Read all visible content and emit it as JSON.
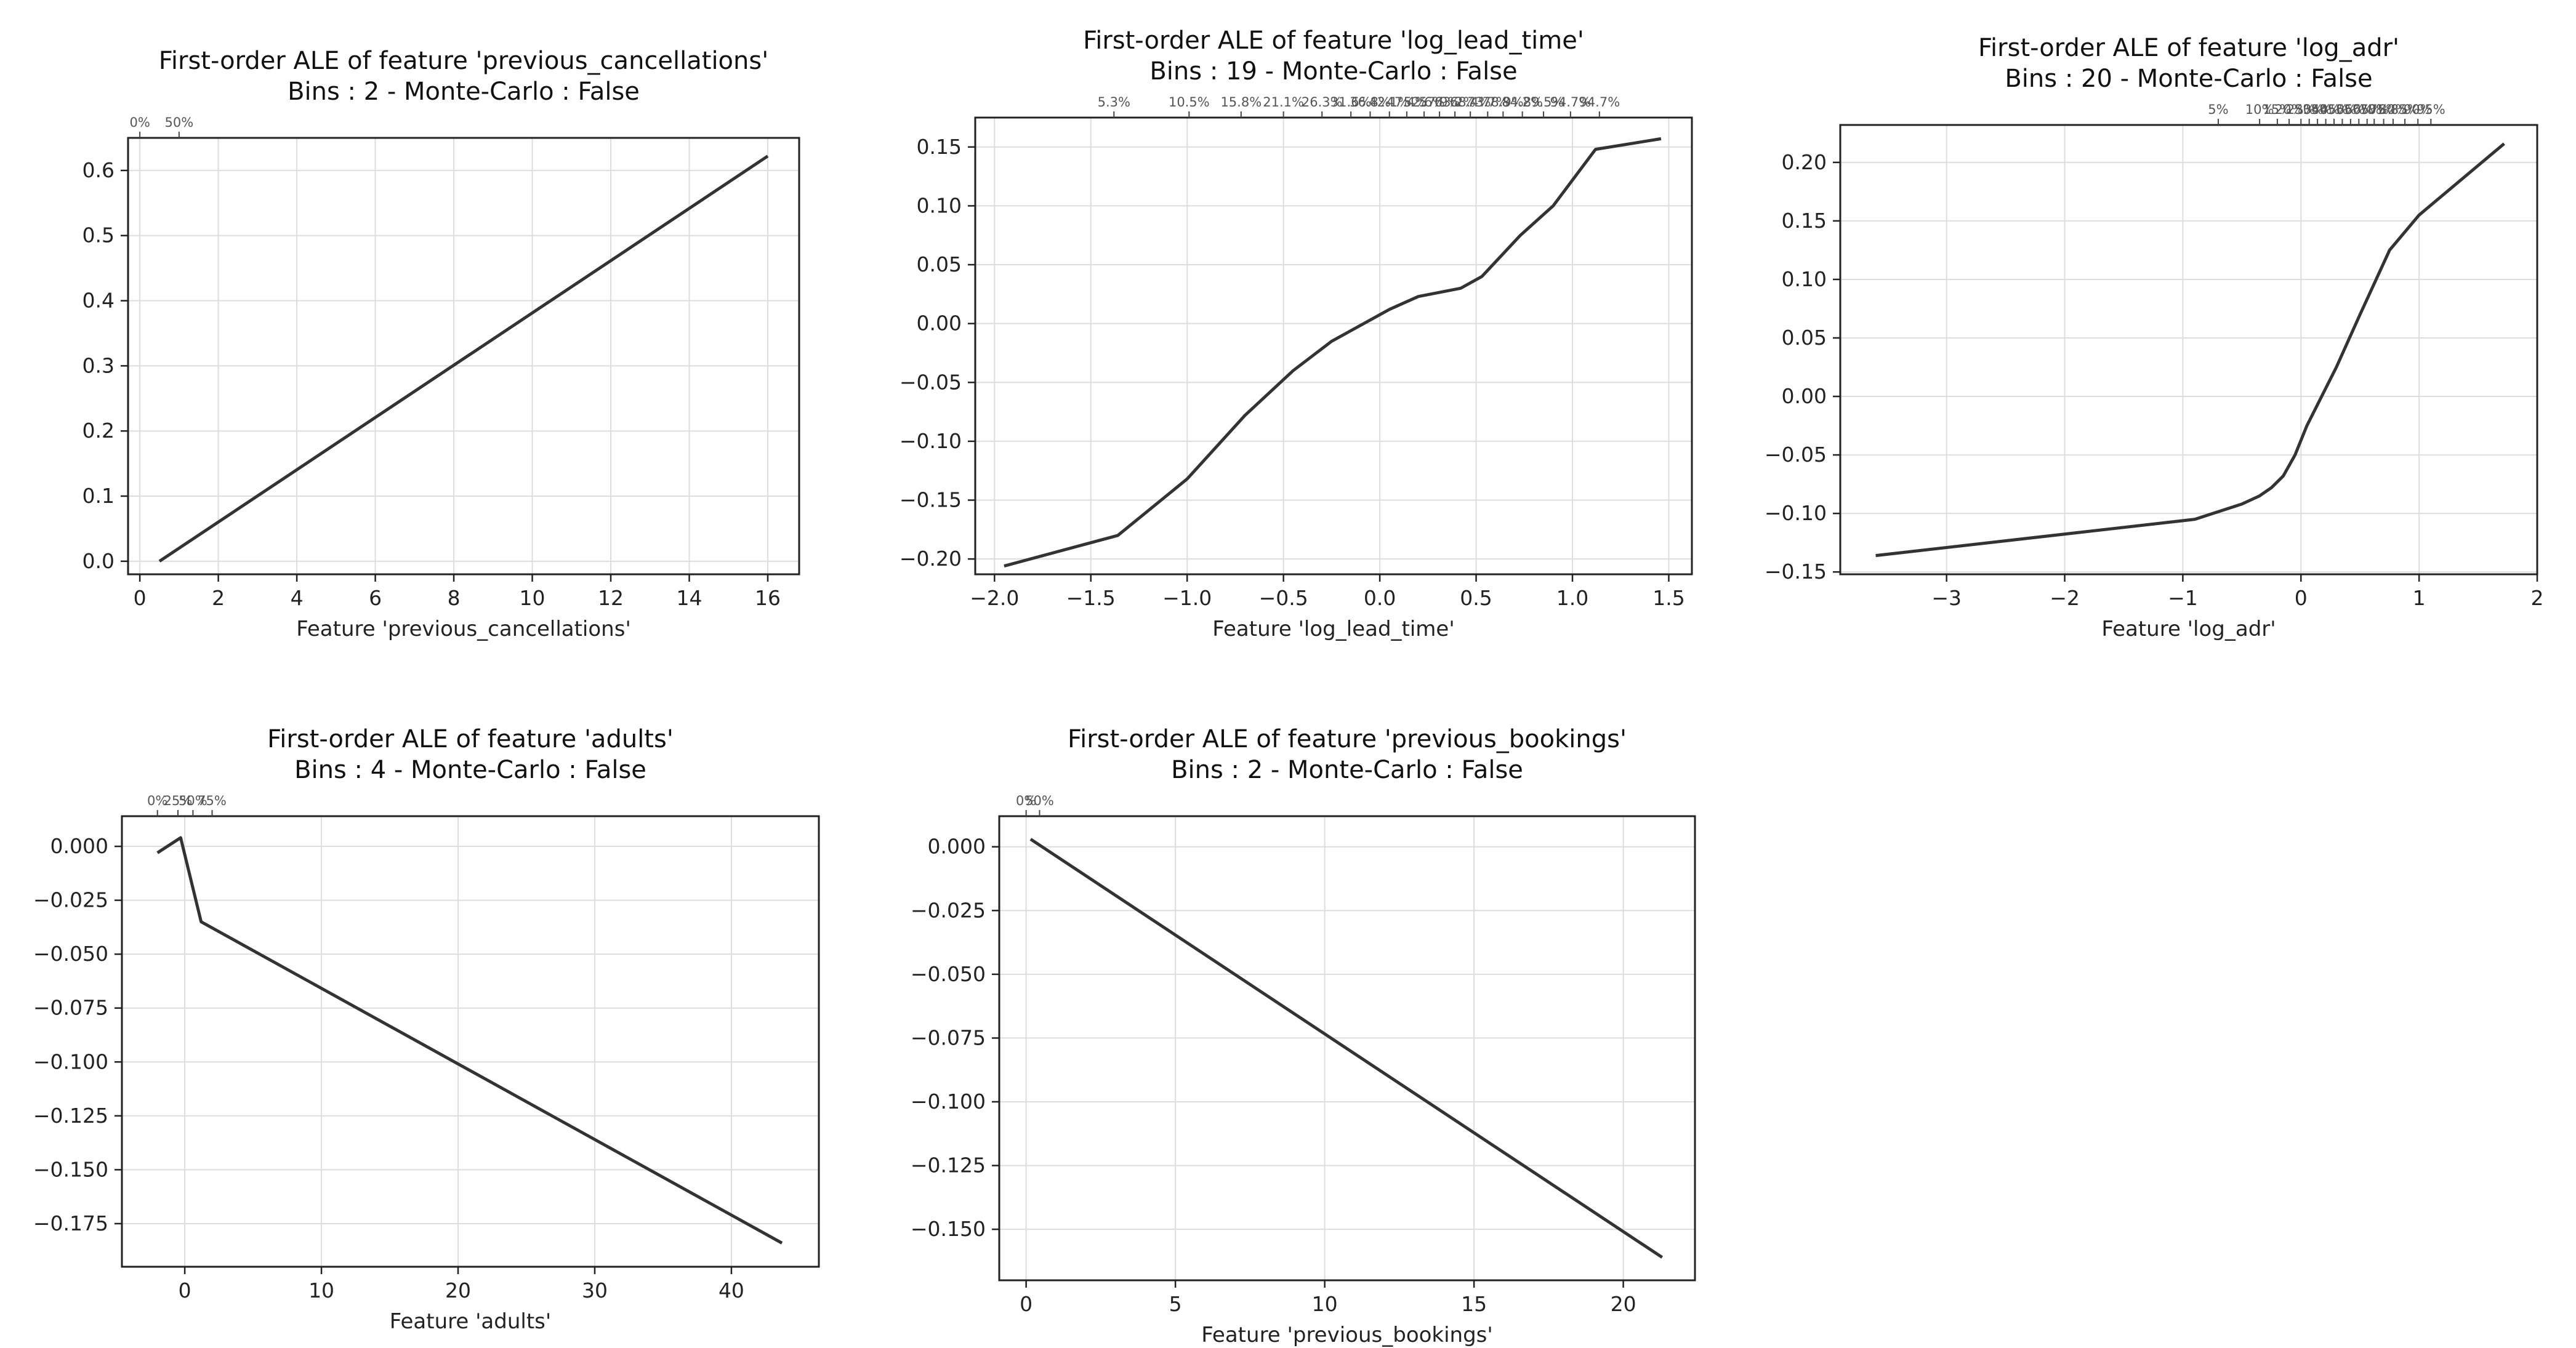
{
  "chart_data": [
    {
      "type": "line",
      "title": "First-order ALE of feature 'previous_cancellations'",
      "subtitle": "Bins : 2 - Monte-Carlo : False",
      "xlabel": "Feature 'previous_cancellations'",
      "ylabel": "",
      "xlim": [
        -0.3,
        16.8
      ],
      "ylim": [
        -0.02,
        0.65
      ],
      "xticks": [
        0,
        2,
        4,
        6,
        8,
        10,
        12,
        14,
        16
      ],
      "yticks": [
        0.0,
        0.1,
        0.2,
        0.3,
        0.4,
        0.5,
        0.6
      ],
      "x_tick_labels": [
        "0",
        "2",
        "4",
        "6",
        "8",
        "10",
        "12",
        "14",
        "16"
      ],
      "y_tick_labels": [
        "0.0",
        "0.1",
        "0.2",
        "0.3",
        "0.4",
        "0.5",
        "0.6"
      ],
      "quantiles": [
        {
          "x": 0.0,
          "label": "0%"
        },
        {
          "x": 1.0,
          "label": "50%"
        }
      ],
      "grid": true,
      "x": [
        0.5,
        16.0
      ],
      "y": [
        0.0,
        0.622
      ]
    },
    {
      "type": "line",
      "title": "First-order ALE of feature 'log_lead_time'",
      "subtitle": "Bins : 19 - Monte-Carlo : False",
      "xlabel": "Feature 'log_lead_time'",
      "ylabel": "",
      "xlim": [
        -2.1,
        1.62
      ],
      "ylim": [
        -0.213,
        0.175
      ],
      "xticks": [
        -2.0,
        -1.5,
        -1.0,
        -0.5,
        0.0,
        0.5,
        1.0,
        1.5
      ],
      "yticks": [
        -0.2,
        -0.15,
        -0.1,
        -0.05,
        0.0,
        0.05,
        0.1,
        0.15
      ],
      "x_tick_labels": [
        "−2.0",
        "−1.5",
        "−1.0",
        "−0.5",
        "0.0",
        "0.5",
        "1.0",
        "1.5"
      ],
      "y_tick_labels": [
        "−0.20",
        "−0.15",
        "−0.10",
        "−0.05",
        "0.00",
        "0.05",
        "0.10",
        "0.15"
      ],
      "quantiles": [
        {
          "x": -1.38,
          "label": "5.3%"
        },
        {
          "x": -0.99,
          "label": "10.5%"
        },
        {
          "x": -0.72,
          "label": "15.8%"
        },
        {
          "x": -0.5,
          "label": "21.1%"
        },
        {
          "x": -0.3,
          "label": "26.3%"
        },
        {
          "x": -0.15,
          "label": "31.6%"
        },
        {
          "x": -0.05,
          "label": "36.8%"
        },
        {
          "x": 0.05,
          "label": "42.1%"
        },
        {
          "x": 0.14,
          "label": "47.4%"
        },
        {
          "x": 0.23,
          "label": "52.6%"
        },
        {
          "x": 0.31,
          "label": "57.9%"
        },
        {
          "x": 0.39,
          "label": "63.2%"
        },
        {
          "x": 0.47,
          "label": "68.4%"
        },
        {
          "x": 0.56,
          "label": "73.7%"
        },
        {
          "x": 0.64,
          "label": "78.9%"
        },
        {
          "x": 0.74,
          "label": "84.2%"
        },
        {
          "x": 0.85,
          "label": "89.5%"
        },
        {
          "x": 0.99,
          "label": "94.7%"
        },
        {
          "x": 1.14,
          "label": "94.7%"
        }
      ],
      "grid": true,
      "x": [
        -1.95,
        -1.36,
        -1.0,
        -0.7,
        -0.45,
        -0.25,
        0.05,
        0.2,
        0.42,
        0.53,
        0.73,
        0.9,
        1.12,
        1.46
      ],
      "y": [
        -0.206,
        -0.18,
        -0.132,
        -0.078,
        -0.04,
        -0.015,
        0.012,
        0.023,
        0.03,
        0.04,
        0.075,
        0.1,
        0.148,
        0.157
      ]
    },
    {
      "type": "line",
      "title": "First-order ALE of feature 'log_adr'",
      "subtitle": "Bins : 20 - Monte-Carlo : False",
      "xlabel": "Feature 'log_adr'",
      "ylabel": "",
      "xlim": [
        -3.9,
        2.0
      ],
      "ylim": [
        -0.152,
        0.232
      ],
      "xticks": [
        -3,
        -2,
        -1,
        0,
        1,
        2
      ],
      "yticks": [
        -0.15,
        -0.1,
        -0.05,
        0.0,
        0.05,
        0.1,
        0.15,
        0.2
      ],
      "x_tick_labels": [
        "−3",
        "−2",
        "−1",
        "0",
        "1",
        "2"
      ],
      "y_tick_labels": [
        "−0.15",
        "−0.10",
        "−0.05",
        "0.00",
        "0.05",
        "0.10",
        "0.15",
        "0.20"
      ],
      "quantiles": [
        {
          "x": -0.7,
          "label": "5%"
        },
        {
          "x": -0.35,
          "label": "10%"
        },
        {
          "x": -0.2,
          "label": "15%"
        },
        {
          "x": -0.1,
          "label": "20%"
        },
        {
          "x": 0.0,
          "label": "25%"
        },
        {
          "x": 0.07,
          "label": "30%"
        },
        {
          "x": 0.14,
          "label": "35%"
        },
        {
          "x": 0.21,
          "label": "40%"
        },
        {
          "x": 0.28,
          "label": "45%"
        },
        {
          "x": 0.35,
          "label": "50%"
        },
        {
          "x": 0.42,
          "label": "55%"
        },
        {
          "x": 0.49,
          "label": "60%"
        },
        {
          "x": 0.56,
          "label": "65%"
        },
        {
          "x": 0.62,
          "label": "70%"
        },
        {
          "x": 0.7,
          "label": "75%"
        },
        {
          "x": 0.78,
          "label": "80%"
        },
        {
          "x": 0.88,
          "label": "85%"
        },
        {
          "x": 0.99,
          "label": "90%"
        },
        {
          "x": 1.1,
          "label": "95%"
        }
      ],
      "grid": true,
      "x": [
        -3.6,
        -0.9,
        -0.5,
        -0.35,
        -0.25,
        -0.15,
        -0.05,
        0.05,
        0.15,
        0.3,
        0.5,
        0.75,
        1.0,
        1.72
      ],
      "y": [
        -0.136,
        -0.105,
        -0.092,
        -0.085,
        -0.078,
        -0.068,
        -0.05,
        -0.025,
        -0.005,
        0.025,
        0.07,
        0.125,
        0.155,
        0.216
      ]
    },
    {
      "type": "line",
      "title": "First-order ALE of feature 'adults'",
      "subtitle": "Bins : 4 - Monte-Carlo : False",
      "xlabel": "Feature 'adults'",
      "ylabel": "",
      "xlim": [
        -4.6,
        46.4
      ],
      "ylim": [
        -0.195,
        0.014
      ],
      "xticks": [
        0,
        10,
        20,
        30,
        40
      ],
      "yticks": [
        0.0,
        -0.025,
        -0.05,
        -0.075,
        -0.1,
        -0.125,
        -0.15,
        -0.175
      ],
      "x_tick_labels": [
        "0",
        "10",
        "20",
        "30",
        "40"
      ],
      "y_tick_labels": [
        "0.000",
        "−0.025",
        "−0.050",
        "−0.075",
        "−0.100",
        "−0.125",
        "−0.150",
        "−0.175"
      ],
      "quantiles": [
        {
          "x": -2.0,
          "label": "0%"
        },
        {
          "x": -0.5,
          "label": "25%"
        },
        {
          "x": 0.6,
          "label": "50%"
        },
        {
          "x": 2.0,
          "label": "75%"
        }
      ],
      "grid": true,
      "x": [
        -2.0,
        -0.3,
        1.2,
        43.7
      ],
      "y": [
        -0.003,
        0.004,
        -0.035,
        -0.184
      ]
    },
    {
      "type": "line",
      "title": "First-order ALE of feature 'previous_bookings'",
      "subtitle": "Bins : 2 - Monte-Carlo : False",
      "xlabel": "Feature 'previous_bookings'",
      "ylabel": "",
      "xlim": [
        -0.9,
        22.4
      ],
      "ylim": [
        -0.17,
        0.012
      ],
      "xticks": [
        0,
        5,
        10,
        15,
        20
      ],
      "yticks": [
        0.0,
        -0.025,
        -0.05,
        -0.075,
        -0.1,
        -0.125,
        -0.15
      ],
      "x_tick_labels": [
        "0",
        "5",
        "10",
        "15",
        "20"
      ],
      "y_tick_labels": [
        "0.000",
        "−0.025",
        "−0.050",
        "−0.075",
        "−0.100",
        "−0.125",
        "−0.150"
      ],
      "quantiles": [
        {
          "x": 0.0,
          "label": "0%"
        },
        {
          "x": 0.45,
          "label": "50%"
        }
      ],
      "grid": true,
      "x": [
        0.15,
        21.3
      ],
      "y": [
        0.003,
        -0.161
      ]
    }
  ]
}
